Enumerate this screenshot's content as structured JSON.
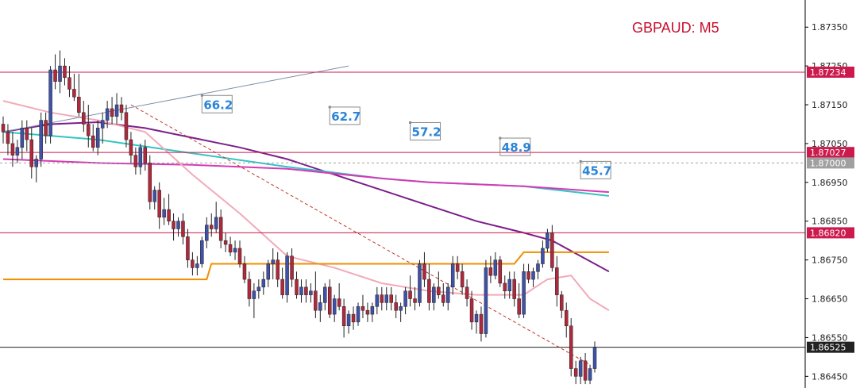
{
  "chart_data": {
    "type": "candlestick",
    "title": "GBPAUD: M5",
    "y_ticks": [
      "1.87350",
      "1.87250",
      "1.87150",
      "1.87050",
      "1.86950",
      "1.86850",
      "1.86750",
      "1.86650",
      "1.86550",
      "1.86450"
    ],
    "ylim": [
      1.8642,
      1.8742
    ],
    "grid": false,
    "colors": {
      "bull": "#3f51a8",
      "bear": "#b0283c",
      "wick": "#222222",
      "level": "#cc1a4d",
      "ma_purple": "#7b1f8a",
      "ma_teal": "#33c4c4",
      "ma_magenta": "#d63ab4",
      "ma_pink": "#f2aab8",
      "orange": "#ef8f00",
      "dashed": "#c0392b",
      "trend": "#7f8ea8"
    },
    "horizontal_levels": [
      {
        "value": 1.87234,
        "label": "1.87234",
        "color": "#cc1a4d"
      },
      {
        "value": 1.87027,
        "label": "1.87027",
        "color": "#cc1a4d"
      },
      {
        "value": 1.8682,
        "label": "1.86820",
        "color": "#cc1a4d"
      },
      {
        "value": 1.87,
        "label": "1.87000",
        "color": "#a0a0a0",
        "dotted": true
      },
      {
        "value": 1.86525,
        "label": "1.86525",
        "color": "#222222"
      }
    ],
    "annotations": [
      {
        "text": "66.2",
        "bar": 42,
        "price": 1.8717
      },
      {
        "text": "62.7",
        "bar": 69,
        "price": 1.8714
      },
      {
        "text": "57.2",
        "bar": 86,
        "price": 1.871
      },
      {
        "text": "48.9",
        "bar": 105,
        "price": 1.8706
      },
      {
        "text": "45.7",
        "bar": 122,
        "price": 1.87
      }
    ],
    "candles": [
      [
        1.871,
        1.8712,
        1.8705,
        1.8708
      ],
      [
        1.8708,
        1.871,
        1.8702,
        1.8705
      ],
      [
        1.8705,
        1.8708,
        1.8699,
        1.8702
      ],
      [
        1.8702,
        1.8706,
        1.87,
        1.8704
      ],
      [
        1.8704,
        1.8711,
        1.8701,
        1.8709
      ],
      [
        1.8709,
        1.8711,
        1.8703,
        1.8706
      ],
      [
        1.8706,
        1.8709,
        1.8696,
        1.8699
      ],
      [
        1.8699,
        1.8702,
        1.8695,
        1.8701
      ],
      [
        1.8701,
        1.8713,
        1.8699,
        1.8711
      ],
      [
        1.8711,
        1.8713,
        1.8705,
        1.8707
      ],
      [
        1.8707,
        1.8725,
        1.8705,
        1.8724
      ],
      [
        1.8724,
        1.8728,
        1.8719,
        1.8721
      ],
      [
        1.8721,
        1.8729,
        1.8718,
        1.8725
      ],
      [
        1.8725,
        1.8727,
        1.872,
        1.8722
      ],
      [
        1.8722,
        1.8725,
        1.8717,
        1.8719
      ],
      [
        1.8719,
        1.8723,
        1.8716,
        1.8717
      ],
      [
        1.8717,
        1.8723,
        1.8712,
        1.8713
      ],
      [
        1.8713,
        1.8716,
        1.8708,
        1.871
      ],
      [
        1.871,
        1.8715,
        1.8704,
        1.8707
      ],
      [
        1.8707,
        1.871,
        1.8703,
        1.8704
      ],
      [
        1.8704,
        1.8711,
        1.8702,
        1.8709
      ],
      [
        1.8709,
        1.8713,
        1.8705,
        1.8711
      ],
      [
        1.8711,
        1.8716,
        1.8709,
        1.8714
      ],
      [
        1.8714,
        1.8717,
        1.871,
        1.8712
      ],
      [
        1.8712,
        1.8718,
        1.871,
        1.8715
      ],
      [
        1.8715,
        1.8717,
        1.8711,
        1.8713
      ],
      [
        1.8713,
        1.8715,
        1.8704,
        1.8706
      ],
      [
        1.8706,
        1.8708,
        1.87,
        1.8702
      ],
      [
        1.8702,
        1.8704,
        1.8697,
        1.8699
      ],
      [
        1.8699,
        1.8705,
        1.8697,
        1.8704
      ],
      [
        1.8704,
        1.8706,
        1.8698,
        1.87
      ],
      [
        1.87,
        1.8702,
        1.8688,
        1.869
      ],
      [
        1.869,
        1.8694,
        1.8688,
        1.8693
      ],
      [
        1.8693,
        1.8695,
        1.8683,
        1.8686
      ],
      [
        1.8686,
        1.8691,
        1.8684,
        1.8688
      ],
      [
        1.8688,
        1.8692,
        1.8684,
        1.8685
      ],
      [
        1.8685,
        1.8687,
        1.868,
        1.8683
      ],
      [
        1.8683,
        1.8686,
        1.8681,
        1.8685
      ],
      [
        1.8685,
        1.8687,
        1.8679,
        1.8681
      ],
      [
        1.8681,
        1.8683,
        1.8673,
        1.8675
      ],
      [
        1.8675,
        1.8677,
        1.8671,
        1.8673
      ],
      [
        1.8673,
        1.8676,
        1.8671,
        1.8674
      ],
      [
        1.8674,
        1.8681,
        1.8673,
        1.868
      ],
      [
        1.868,
        1.8686,
        1.8678,
        1.8684
      ],
      [
        1.8684,
        1.8687,
        1.8681,
        1.8683
      ],
      [
        1.8683,
        1.869,
        1.8682,
        1.8686
      ],
      [
        1.8686,
        1.8688,
        1.8678,
        1.868
      ],
      [
        1.868,
        1.8682,
        1.8677,
        1.8679
      ],
      [
        1.8679,
        1.8681,
        1.8676,
        1.8677
      ],
      [
        1.8677,
        1.868,
        1.8675,
        1.8678
      ],
      [
        1.8678,
        1.868,
        1.8673,
        1.8674
      ],
      [
        1.8674,
        1.8676,
        1.8669,
        1.867
      ],
      [
        1.867,
        1.8672,
        1.8663,
        1.8665
      ],
      [
        1.8665,
        1.8669,
        1.866,
        1.8667
      ],
      [
        1.8667,
        1.867,
        1.8665,
        1.8668
      ],
      [
        1.8668,
        1.8672,
        1.8666,
        1.867
      ],
      [
        1.867,
        1.8675,
        1.8668,
        1.8674
      ],
      [
        1.8674,
        1.8678,
        1.867,
        1.8675
      ],
      [
        1.8675,
        1.8677,
        1.8668,
        1.867
      ],
      [
        1.867,
        1.8673,
        1.8665,
        1.8666
      ],
      [
        1.8666,
        1.8677,
        1.8664,
        1.8676
      ],
      [
        1.8676,
        1.8678,
        1.8668,
        1.867
      ],
      [
        1.867,
        1.8672,
        1.8665,
        1.8666
      ],
      [
        1.8666,
        1.867,
        1.8664,
        1.8668
      ],
      [
        1.8668,
        1.867,
        1.8664,
        1.8666
      ],
      [
        1.8666,
        1.8669,
        1.8664,
        1.8667
      ],
      [
        1.8667,
        1.8672,
        1.866,
        1.8662
      ],
      [
        1.8662,
        1.8666,
        1.8659,
        1.8664
      ],
      [
        1.8664,
        1.8669,
        1.8662,
        1.8668
      ],
      [
        1.8668,
        1.867,
        1.866,
        1.8661
      ],
      [
        1.8661,
        1.8666,
        1.8659,
        1.8665
      ],
      [
        1.8665,
        1.8669,
        1.8662,
        1.8663
      ],
      [
        1.8663,
        1.8665,
        1.8655,
        1.8658
      ],
      [
        1.8658,
        1.8662,
        1.8656,
        1.8661
      ],
      [
        1.8661,
        1.8663,
        1.8657,
        1.8659
      ],
      [
        1.8659,
        1.8664,
        1.8658,
        1.8663
      ],
      [
        1.8663,
        1.8666,
        1.866,
        1.8662
      ],
      [
        1.8662,
        1.8664,
        1.8659,
        1.8661
      ],
      [
        1.8661,
        1.8664,
        1.8659,
        1.8663
      ],
      [
        1.8663,
        1.8668,
        1.8661,
        1.8666
      ],
      [
        1.8666,
        1.8668,
        1.8662,
        1.8664
      ],
      [
        1.8664,
        1.8668,
        1.8662,
        1.8666
      ],
      [
        1.8666,
        1.8668,
        1.8662,
        1.8664
      ],
      [
        1.8664,
        1.8666,
        1.866,
        1.8662
      ],
      [
        1.8662,
        1.8664,
        1.8659,
        1.8663
      ],
      [
        1.8663,
        1.8668,
        1.8661,
        1.8667
      ],
      [
        1.8667,
        1.8671,
        1.8663,
        1.8665
      ],
      [
        1.8665,
        1.8668,
        1.8662,
        1.8664
      ],
      [
        1.8664,
        1.8675,
        1.8663,
        1.8674
      ],
      [
        1.8674,
        1.8677,
        1.8668,
        1.867
      ],
      [
        1.867,
        1.8674,
        1.8662,
        1.8664
      ],
      [
        1.8664,
        1.8669,
        1.8662,
        1.8668
      ],
      [
        1.8668,
        1.8672,
        1.8665,
        1.8666
      ],
      [
        1.8666,
        1.8669,
        1.8663,
        1.8664
      ],
      [
        1.8664,
        1.8669,
        1.8662,
        1.8668
      ],
      [
        1.8668,
        1.8676,
        1.8666,
        1.8674
      ],
      [
        1.8674,
        1.8676,
        1.867,
        1.8672
      ],
      [
        1.8672,
        1.8674,
        1.8666,
        1.8668
      ],
      [
        1.8668,
        1.867,
        1.8663,
        1.8665
      ],
      [
        1.8665,
        1.8667,
        1.8657,
        1.8659
      ],
      [
        1.8659,
        1.8662,
        1.8656,
        1.8661
      ],
      [
        1.8661,
        1.8663,
        1.8654,
        1.8656
      ],
      [
        1.8656,
        1.8675,
        1.8655,
        1.8673
      ],
      [
        1.8673,
        1.8676,
        1.8669,
        1.8671
      ],
      [
        1.8671,
        1.8677,
        1.867,
        1.8675
      ],
      [
        1.8675,
        1.8676,
        1.8668,
        1.8669
      ],
      [
        1.8669,
        1.8671,
        1.8665,
        1.8667
      ],
      [
        1.8667,
        1.8672,
        1.8665,
        1.867
      ],
      [
        1.867,
        1.8672,
        1.8663,
        1.8665
      ],
      [
        1.8665,
        1.8669,
        1.866,
        1.8661
      ],
      [
        1.8661,
        1.8674,
        1.866,
        1.8672
      ],
      [
        1.8672,
        1.8674,
        1.8669,
        1.867
      ],
      [
        1.867,
        1.8673,
        1.8668,
        1.8672
      ],
      [
        1.8672,
        1.8675,
        1.867,
        1.8674
      ],
      [
        1.8674,
        1.868,
        1.8673,
        1.8678
      ],
      [
        1.8678,
        1.8683,
        1.8677,
        1.8682
      ],
      [
        1.8682,
        1.8684,
        1.8672,
        1.8673
      ],
      [
        1.8673,
        1.8676,
        1.8663,
        1.8666
      ],
      [
        1.8666,
        1.8667,
        1.866,
        1.8662
      ],
      [
        1.8662,
        1.8664,
        1.8655,
        1.8658
      ],
      [
        1.8658,
        1.866,
        1.8645,
        1.8647
      ],
      [
        1.8647,
        1.8649,
        1.8643,
        1.8645
      ],
      [
        1.8645,
        1.865,
        1.8643,
        1.8649
      ],
      [
        1.8649,
        1.8651,
        1.8643,
        1.8644
      ],
      [
        1.8644,
        1.8648,
        1.8643,
        1.8647
      ],
      [
        1.8647,
        1.8654,
        1.8646,
        1.86525
      ]
    ],
    "overlays": [
      {
        "name": "",
        "color": "#7b1f8a",
        "width": 2,
        "points": [
          [
            0,
            1.8708
          ],
          [
            10,
            1.871
          ],
          [
            20,
            1.87105
          ],
          [
            30,
            1.8709
          ],
          [
            40,
            1.87065
          ],
          [
            50,
            1.8704
          ],
          [
            60,
            1.8701
          ],
          [
            70,
            1.8697
          ],
          [
            80,
            1.8693
          ],
          [
            90,
            1.8689
          ],
          [
            100,
            1.8685
          ],
          [
            110,
            1.8682
          ],
          [
            116,
            1.868
          ],
          [
            122,
            1.8676
          ],
          [
            128,
            1.8672
          ]
        ]
      },
      {
        "name": "",
        "color": "#33c4c4",
        "width": 2,
        "points": [
          [
            0,
            1.8708
          ],
          [
            20,
            1.8706
          ],
          [
            40,
            1.87025
          ],
          [
            60,
            1.8699
          ],
          [
            80,
            1.8696
          ],
          [
            90,
            1.8695
          ],
          [
            110,
            1.8694
          ],
          [
            128,
            1.86915
          ]
        ]
      },
      {
        "name": "",
        "color": "#d63ab4",
        "width": 2,
        "points": [
          [
            0,
            1.8701
          ],
          [
            20,
            1.87
          ],
          [
            40,
            1.86995
          ],
          [
            60,
            1.86985
          ],
          [
            80,
            1.8696
          ],
          [
            90,
            1.8695
          ],
          [
            110,
            1.8694
          ],
          [
            128,
            1.86925
          ]
        ]
      },
      {
        "name": "",
        "color": "#f2aab8",
        "width": 2,
        "points": [
          [
            0,
            1.8716
          ],
          [
            10,
            1.8713
          ],
          [
            20,
            1.8711
          ],
          [
            30,
            1.8708
          ],
          [
            40,
            1.8697
          ],
          [
            50,
            1.8687
          ],
          [
            60,
            1.8676
          ],
          [
            70,
            1.8673
          ],
          [
            80,
            1.8669
          ],
          [
            90,
            1.8667
          ],
          [
            100,
            1.8666
          ],
          [
            110,
            1.8666
          ],
          [
            115,
            1.867
          ],
          [
            120,
            1.8671
          ],
          [
            124,
            1.8665
          ],
          [
            128,
            1.8662
          ]
        ]
      },
      {
        "name": "",
        "color": "#ef8f00",
        "width": 2,
        "step": true,
        "points": [
          [
            0,
            1.867
          ],
          [
            43,
            1.867
          ],
          [
            44,
            1.8674
          ],
          [
            108,
            1.8674
          ],
          [
            110,
            1.8677
          ],
          [
            128,
            1.8677
          ]
        ]
      },
      {
        "name": "",
        "color": "#c0392b",
        "width": 1,
        "dashed": true,
        "points": [
          [
            27,
            1.8715
          ],
          [
            124,
            1.8648
          ]
        ]
      },
      {
        "name": "",
        "color": "#7f8ea8",
        "width": 1,
        "points": [
          [
            0,
            1.8708
          ],
          [
            73,
            1.8725
          ]
        ]
      }
    ]
  }
}
